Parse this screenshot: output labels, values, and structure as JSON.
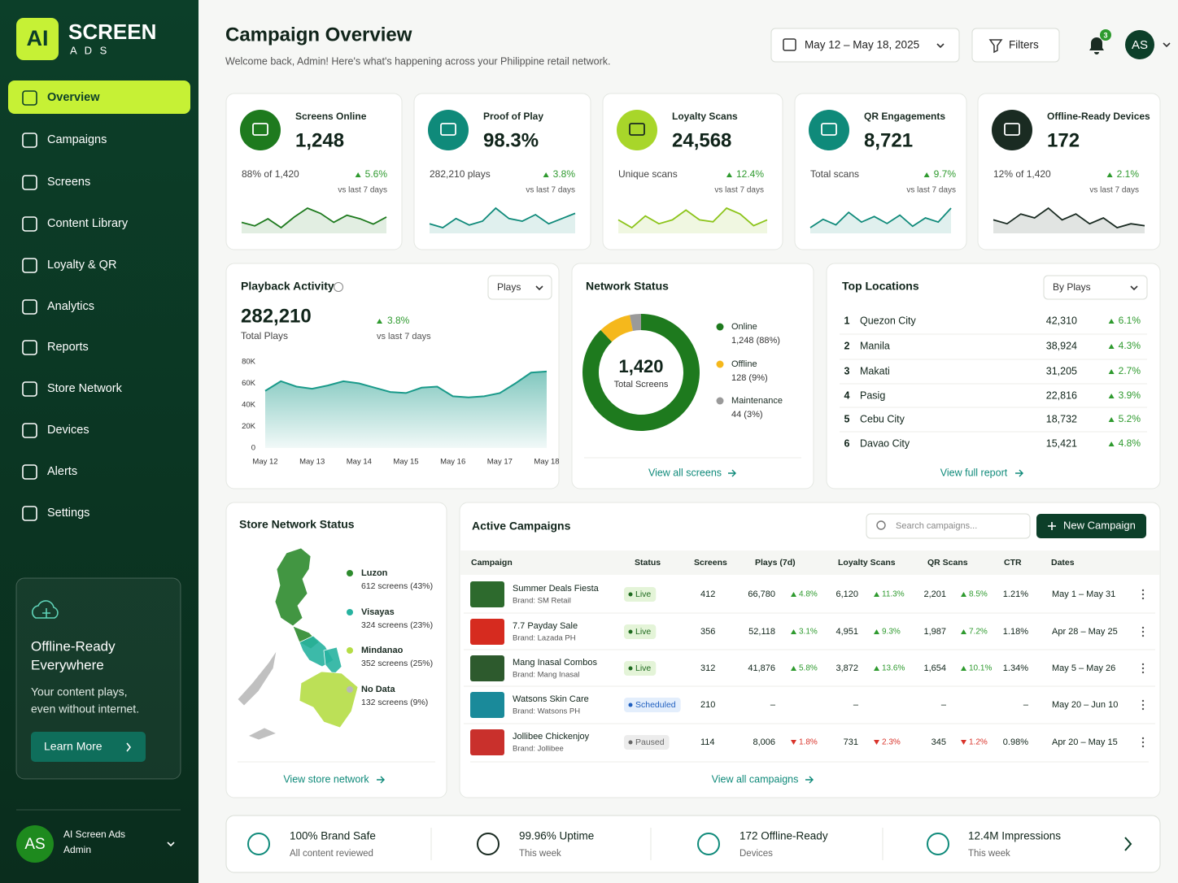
{
  "brand": {
    "logo": "AI",
    "name": "SCREEN",
    "sub": "A D S"
  },
  "nav": [
    "Overview",
    "Campaigns",
    "Screens",
    "Content Library",
    "Loyalty & QR",
    "Analytics",
    "Reports",
    "Store Network",
    "Devices",
    "Alerts",
    "Settings"
  ],
  "promo": {
    "title_1": "Offline-Ready",
    "title_2": "Everywhere",
    "text_1": "Your content plays,",
    "text_2": "even without internet.",
    "button": "Learn More"
  },
  "user": {
    "initials": "AS",
    "name": "AI Screen Ads",
    "role": "Admin"
  },
  "header": {
    "title": "Campaign Overview",
    "subtitle": "Welcome back, Admin! Here's what's happening across your Philippine retail network.",
    "date_range": "May 12 – May 18, 2025",
    "filters": "Filters",
    "notifications": "3",
    "avatar": "AS"
  },
  "kpis": [
    {
      "label": "Screens Online",
      "value": "1,248",
      "detail": "88% of 1,420",
      "change": "5.6%",
      "period": "vs last 7 days",
      "color": "#1e7a1e",
      "spark": [
        50,
        48,
        52,
        47,
        53,
        58,
        55,
        50,
        54,
        52,
        49,
        53
      ]
    },
    {
      "label": "Proof of Play",
      "value": "98.3%",
      "detail": "282,210 plays",
      "change": "3.8%",
      "period": "vs last 7 days",
      "color": "#0f8a7a",
      "spark": [
        48,
        45,
        52,
        47,
        50,
        60,
        52,
        50,
        55,
        48,
        52,
        56
      ]
    },
    {
      "label": "Loyalty Scans",
      "value": "24,568",
      "detail": "Unique scans",
      "change": "12.4%",
      "period": "vs last 7 days",
      "color": "#a8d62a",
      "spark": [
        50,
        46,
        52,
        48,
        50,
        55,
        50,
        49,
        56,
        53,
        47,
        50
      ]
    },
    {
      "label": "QR Engagements",
      "value": "8,721",
      "detail": "Total scans",
      "change": "9.7%",
      "period": "vs last 7 days",
      "color": "#0f8a7a",
      "spark": [
        46,
        52,
        48,
        57,
        50,
        54,
        49,
        55,
        47,
        53,
        50,
        60
      ]
    },
    {
      "label": "Offline-Ready Devices",
      "value": "172",
      "detail": "12% of 1,420",
      "change": "2.1%",
      "period": "vs last 7 days",
      "color": "#1a2b22",
      "spark": [
        52,
        50,
        55,
        53,
        58,
        52,
        55,
        50,
        53,
        48,
        50,
        49
      ]
    }
  ],
  "playback": {
    "title": "Playback Activity",
    "select": "Plays",
    "total": "282,210",
    "total_label": "Total Plays",
    "change": "3.8%",
    "period": "vs last 7 days",
    "chart_data": {
      "type": "area",
      "color": "#1a9a8a",
      "categories": [
        "May 12",
        null,
        null,
        "May 13",
        null,
        null,
        "May 14",
        null,
        null,
        "May 15",
        null,
        null,
        "May 16",
        null,
        null,
        "May 17",
        null,
        null,
        "May 18"
      ],
      "values": [
        53000,
        62000,
        57000,
        55000,
        58000,
        62000,
        60000,
        56000,
        52000,
        51000,
        56000,
        57000,
        48000,
        47000,
        48000,
        51000,
        60000,
        70000,
        71000
      ],
      "ylim": [
        0,
        80000
      ],
      "yticks": [
        0,
        {
          "value": 20000,
          "label": "20K"
        },
        {
          "value": 40000,
          "label": "40K"
        },
        {
          "value": 60000,
          "label": "60K"
        },
        {
          "value": 80000,
          "label": "80K"
        }
      ],
      "grid": false
    }
  },
  "network": {
    "title": "Network Status",
    "link": "View all screens",
    "chart_data": {
      "type": "donut",
      "center_value": "1,420",
      "center_label": "Total Screens",
      "segments": [
        {
          "name": "Online",
          "label": "1,248 (88%)",
          "value": 1248,
          "color": "#1e7a1e"
        },
        {
          "name": "Offline",
          "label": "128 (9%)",
          "value": 128,
          "color": "#f5b81c"
        },
        {
          "name": "Maintenance",
          "label": "44 (3%)",
          "value": 44,
          "color": "#9a9a9a"
        }
      ]
    }
  },
  "locations": {
    "title": "Top Locations",
    "select": "By Plays",
    "link": "View full report",
    "rows": [
      {
        "rank": "1",
        "city": "Quezon City",
        "plays": "42,310",
        "change": "6.1%"
      },
      {
        "rank": "2",
        "city": "Manila",
        "plays": "38,924",
        "change": "4.3%"
      },
      {
        "rank": "3",
        "city": "Makati",
        "plays": "31,205",
        "change": "2.7%"
      },
      {
        "rank": "4",
        "city": "Pasig",
        "plays": "22,816",
        "change": "3.9%"
      },
      {
        "rank": "5",
        "city": "Cebu City",
        "plays": "18,732",
        "change": "5.2%"
      },
      {
        "rank": "6",
        "city": "Davao City",
        "plays": "15,421",
        "change": "4.8%"
      }
    ]
  },
  "store_network": {
    "title": "Store Network Status",
    "link": "View store network",
    "regions": [
      {
        "name": "Luzon",
        "label": "612 screens (43%)",
        "color": "#2e8b2e"
      },
      {
        "name": "Visayas",
        "label": "324 screens (23%)",
        "color": "#27b3a0"
      },
      {
        "name": "Mindanao",
        "label": "352 screens (25%)",
        "color": "#b5dd45"
      },
      {
        "name": "No Data",
        "label": "132 screens (9%)",
        "color": "#b9b9b9"
      }
    ]
  },
  "campaigns": {
    "title": "Active Campaigns",
    "search": "Search campaigns...",
    "button": "New Campaign",
    "link": "View all campaigns",
    "headers": [
      "Campaign",
      "Status",
      "Screens",
      "Plays (7d)",
      "Loyalty Scans",
      "QR Scans",
      "CTR",
      "Dates"
    ],
    "rows": [
      {
        "name": "Summer Deals Fiesta",
        "brand": "Brand: SM Retail",
        "status": "Live",
        "screens": "412",
        "plays": "66,780",
        "plays_change": {
          "text": "4.8%",
          "trend": "up"
        },
        "loyalty": "6,120",
        "loyalty_change": {
          "text": "11.3%",
          "trend": "up"
        },
        "qr": "2,201",
        "qr_change": {
          "text": "8.5%",
          "trend": "up"
        },
        "ctr": "1.21%",
        "dates": "May 1 – May 31"
      },
      {
        "name": "7.7 Payday Sale",
        "brand": "Brand: Lazada PH",
        "status": "Live",
        "screens": "356",
        "plays": "52,118",
        "plays_change": {
          "text": "3.1%",
          "trend": "up"
        },
        "loyalty": "4,951",
        "loyalty_change": {
          "text": "9.3%",
          "trend": "up"
        },
        "qr": "1,987",
        "qr_change": {
          "text": "7.2%",
          "trend": "up"
        },
        "ctr": "1.18%",
        "dates": "Apr 28 – May 25"
      },
      {
        "name": "Mang Inasal Combos",
        "brand": "Brand: Mang Inasal",
        "status": "Live",
        "screens": "312",
        "plays": "41,876",
        "plays_change": {
          "text": "5.8%",
          "trend": "up"
        },
        "loyalty": "3,872",
        "loyalty_change": {
          "text": "13.6%",
          "trend": "up"
        },
        "qr": "1,654",
        "qr_change": {
          "text": "10.1%",
          "trend": "up"
        },
        "ctr": "1.34%",
        "dates": "May 5 – May 26"
      },
      {
        "name": "Watsons Skin Care",
        "brand": "Brand: Watsons PH",
        "status": "Scheduled",
        "screens": "210",
        "plays": "–",
        "plays_change": null,
        "loyalty": "–",
        "loyalty_change": null,
        "qr": "–",
        "qr_change": null,
        "ctr": "–",
        "dates": "May 20 – Jun 10"
      },
      {
        "name": "Jollibee Chickenjoy",
        "brand": "Brand: Jollibee",
        "status": "Paused",
        "screens": "114",
        "plays": "8,006",
        "plays_change": {
          "text": "1.8%",
          "trend": "down"
        },
        "loyalty": "731",
        "loyalty_change": {
          "text": "2.3%",
          "trend": "down"
        },
        "qr": "345",
        "qr_change": {
          "text": "1.2%",
          "trend": "down"
        },
        "ctr": "0.98%",
        "dates": "Apr 20 – May 15"
      }
    ]
  },
  "footer": [
    {
      "title": "100% Brand Safe",
      "sub": "All content reviewed"
    },
    {
      "title": "99.96% Uptime",
      "sub": "This week"
    },
    {
      "title": "172 Offline-Ready",
      "sub": "Devices"
    },
    {
      "title": "12.4M Impressions",
      "sub": "This week"
    }
  ]
}
